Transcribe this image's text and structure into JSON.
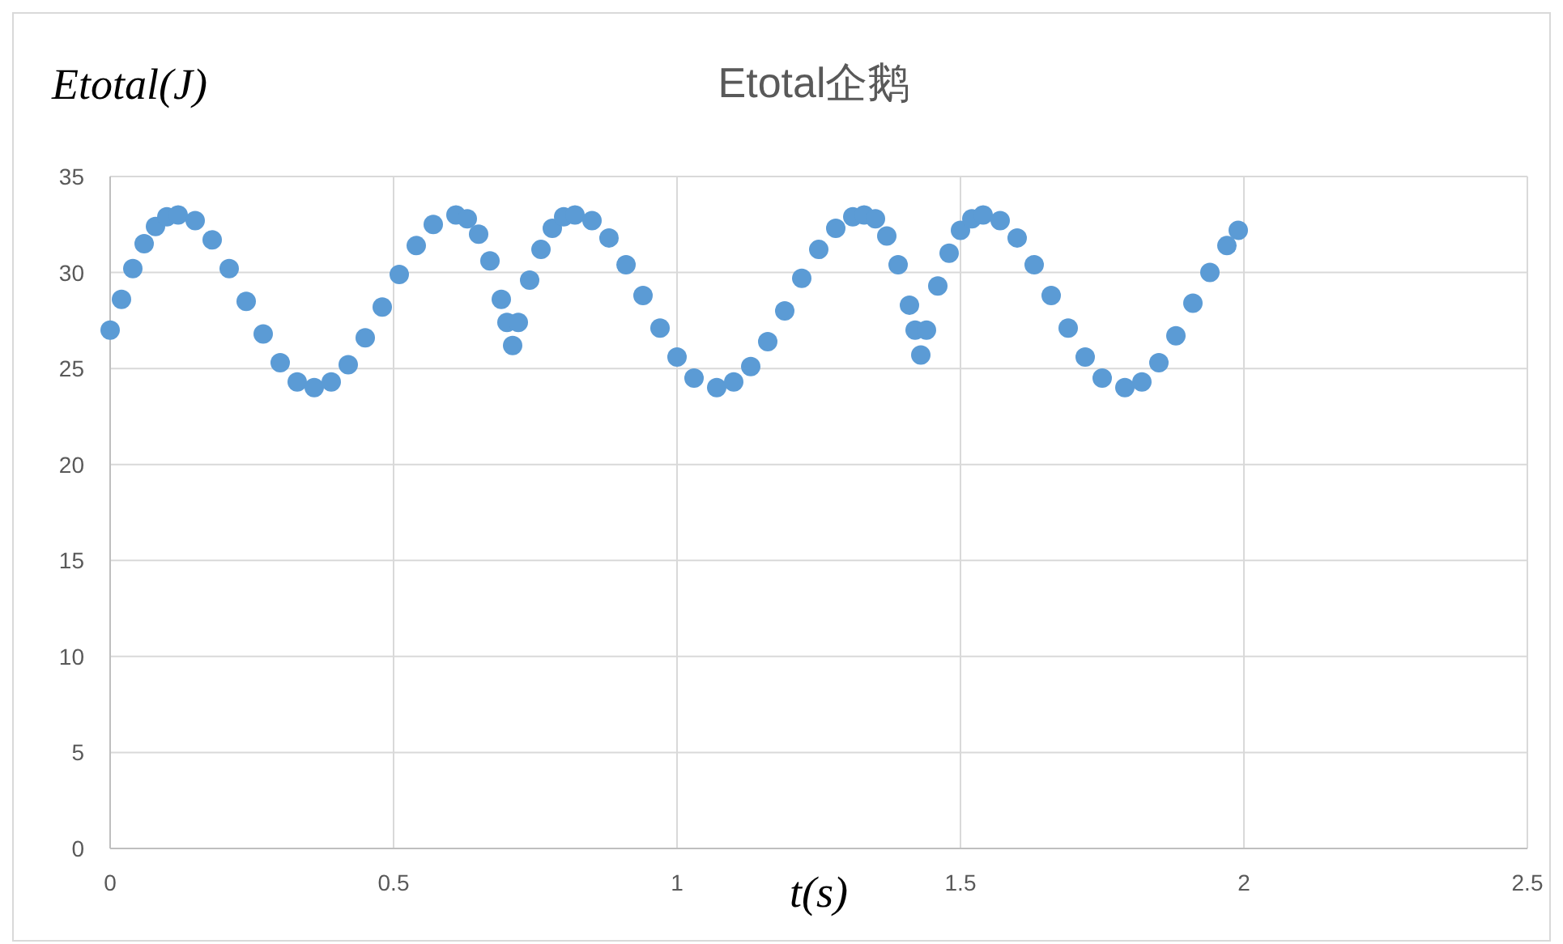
{
  "chart_data": {
    "type": "scatter",
    "title": "Etotal企鹅",
    "ylabel": "Etotal(J)",
    "xlabel": "t(s)",
    "color": "#5b9bd5",
    "marker": "circle",
    "grid": true,
    "xlim": [
      0,
      2.5
    ],
    "ylim": [
      0,
      35
    ],
    "xticks": [
      0,
      0.5,
      1,
      1.5,
      2,
      2.5
    ],
    "yticks": [
      0,
      5,
      10,
      15,
      20,
      25,
      30,
      35
    ],
    "x": [
      0,
      0.02,
      0.04,
      0.06,
      0.08,
      0.1,
      0.12,
      0.15,
      0.18,
      0.21,
      0.24,
      0.27,
      0.3,
      0.33,
      0.36,
      0.39,
      0.42,
      0.45,
      0.48,
      0.51,
      0.54,
      0.57,
      0.61,
      0.63,
      0.65,
      0.67,
      0.69,
      0.7,
      0.71,
      0.72,
      0.74,
      0.76,
      0.78,
      0.8,
      0.82,
      0.85,
      0.88,
      0.91,
      0.94,
      0.97,
      1,
      1.03,
      1.07,
      1.1,
      1.13,
      1.16,
      1.19,
      1.22,
      1.25,
      1.28,
      1.31,
      1.33,
      1.35,
      1.37,
      1.39,
      1.41,
      1.42,
      1.43,
      1.44,
      1.46,
      1.48,
      1.5,
      1.52,
      1.54,
      1.57,
      1.6,
      1.63,
      1.66,
      1.69,
      1.72,
      1.75,
      1.79,
      1.82,
      1.85,
      1.88,
      1.91,
      1.94,
      1.97,
      1.99
    ],
    "values": [
      27,
      28.6,
      30.2,
      31.5,
      32.4,
      32.9,
      33,
      32.7,
      31.7,
      30.2,
      28.5,
      26.8,
      25.3,
      24.3,
      24,
      24.3,
      25.2,
      26.6,
      28.2,
      29.9,
      31.4,
      32.5,
      33,
      32.8,
      32,
      30.6,
      28.6,
      27.4,
      26.2,
      27.4,
      29.6,
      31.2,
      32.3,
      32.9,
      33,
      32.7,
      31.8,
      30.4,
      28.8,
      27.1,
      25.6,
      24.5,
      24,
      24.3,
      25.1,
      26.4,
      28,
      29.7,
      31.2,
      32.3,
      32.9,
      33,
      32.8,
      31.9,
      30.4,
      28.3,
      27,
      25.7,
      27,
      29.3,
      31,
      32.2,
      32.8,
      33,
      32.7,
      31.8,
      30.4,
      28.8,
      27.1,
      25.6,
      24.5,
      24,
      24.3,
      25.3,
      26.7,
      28.4,
      30,
      31.4,
      32.2
    ]
  }
}
